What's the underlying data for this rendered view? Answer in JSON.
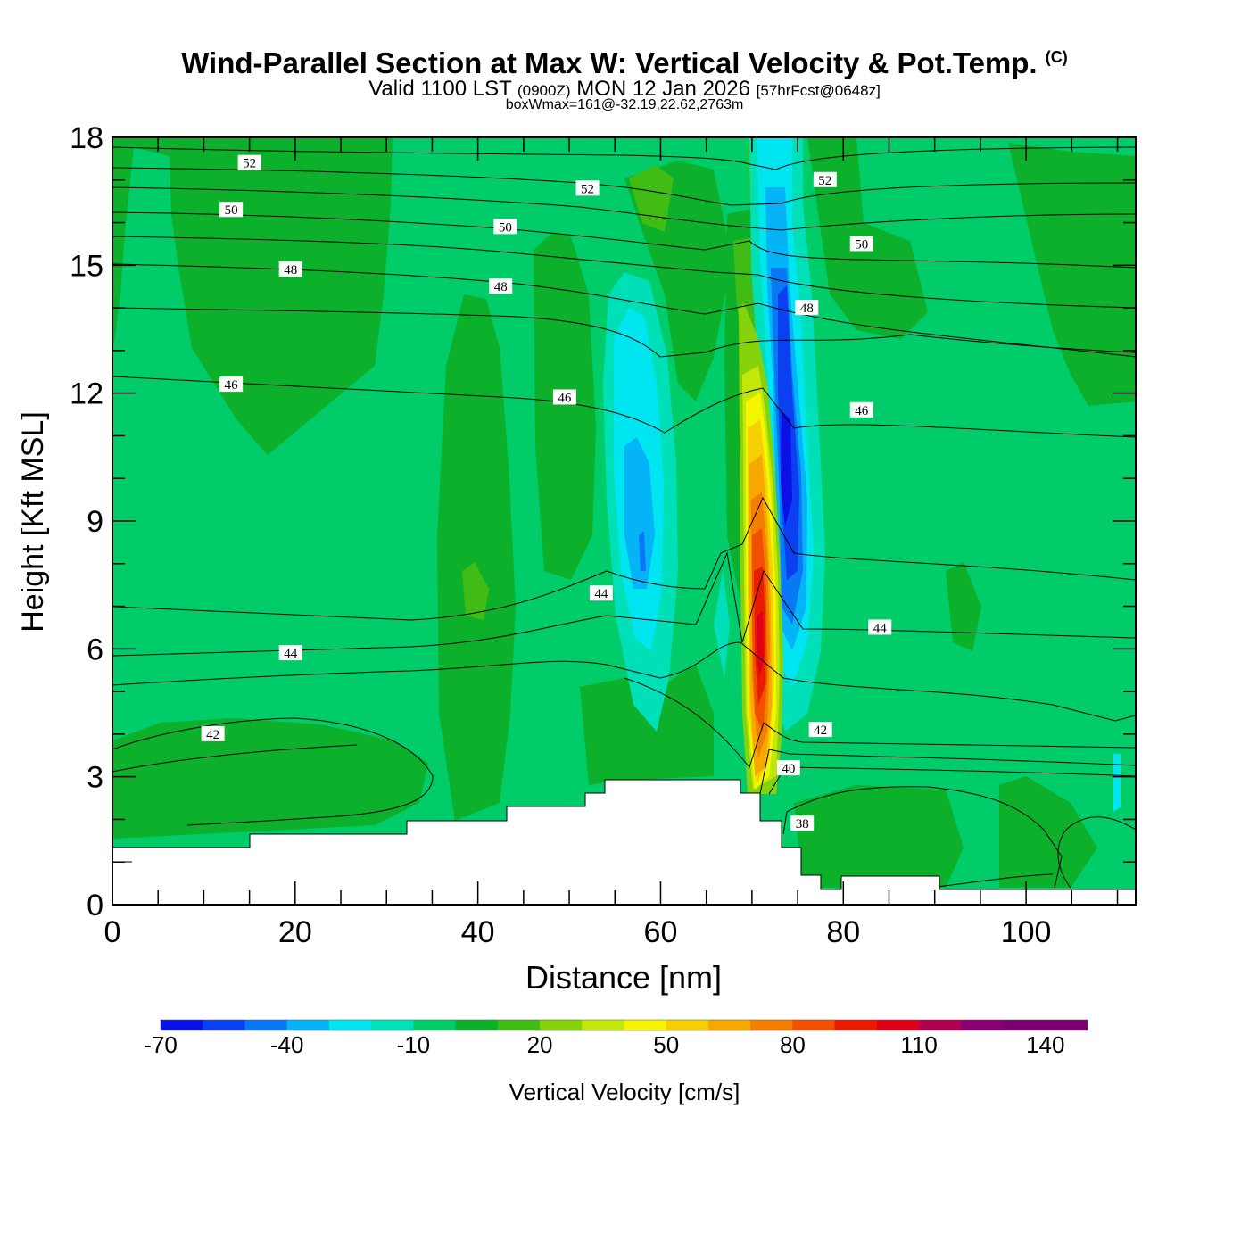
{
  "header": {
    "title_main": "Wind-Parallel Section at Max W: Vertical Velocity & Pot.Temp.",
    "title_copyright": "(C)",
    "valid_prefix": "Valid 1100 LST",
    "valid_utc": "(0900Z)",
    "valid_date": "MON 12 Jan 2026",
    "forecast_info": "[57hrFcst@0648z]",
    "box_info": "boxWmax=161@-32.19,22.62,2763m"
  },
  "chart_data": {
    "type": "heatmap",
    "title": "Wind-Parallel Section at Max W: Vertical Velocity & Pot.Temp.",
    "xlabel": "Distance [nm]",
    "ylabel": "Height [Kft MSL]",
    "xlim": [
      0,
      112
    ],
    "ylim": [
      0,
      18
    ],
    "x_ticks": [
      0,
      20,
      40,
      60,
      80,
      100
    ],
    "y_ticks": [
      0,
      3,
      6,
      9,
      12,
      15,
      18
    ],
    "colorbar": {
      "label": "Vertical Velocity [cm/s]",
      "tick_labels": [
        "-70",
        "-40",
        "-10",
        "20",
        "50",
        "80",
        "110",
        "140"
      ],
      "tick_values": [
        -70,
        -40,
        -10,
        20,
        50,
        80,
        110,
        140
      ],
      "min": -70,
      "max": 150,
      "step": 10,
      "colors": [
        "#0a10e6",
        "#0b40f0",
        "#0878f5",
        "#04b4f7",
        "#00e6f0",
        "#00e0b8",
        "#00cc6a",
        "#0cb02a",
        "#40bc14",
        "#86d20c",
        "#c2e80a",
        "#f5f500",
        "#f5d000",
        "#f4a800",
        "#f47e00",
        "#f05000",
        "#ea1c00",
        "#de0018",
        "#b20050",
        "#8a0070",
        "#7a0070",
        "#7a0070"
      ]
    },
    "contours": {
      "variable": "Potential temperature",
      "labels": [
        {
          "text": "52",
          "x": 15,
          "y": 17.4
        },
        {
          "text": "52",
          "x": 52,
          "y": 16.8
        },
        {
          "text": "52",
          "x": 78,
          "y": 17.0
        },
        {
          "text": "50",
          "x": 13,
          "y": 16.3
        },
        {
          "text": "50",
          "x": 43,
          "y": 15.9
        },
        {
          "text": "50",
          "x": 82,
          "y": 15.5
        },
        {
          "text": "48",
          "x": 19.5,
          "y": 14.9
        },
        {
          "text": "48",
          "x": 42.5,
          "y": 14.5
        },
        {
          "text": "48",
          "x": 76,
          "y": 14.0
        },
        {
          "text": "46",
          "x": 13,
          "y": 12.2
        },
        {
          "text": "46",
          "x": 49.5,
          "y": 11.9
        },
        {
          "text": "46",
          "x": 82,
          "y": 11.6
        },
        {
          "text": "44",
          "x": 53.5,
          "y": 7.3
        },
        {
          "text": "44",
          "x": 19.5,
          "y": 5.9
        },
        {
          "text": "44",
          "x": 84,
          "y": 6.5
        },
        {
          "text": "42",
          "x": 11,
          "y": 4.0
        },
        {
          "text": "42",
          "x": 77.5,
          "y": 4.1
        },
        {
          "text": "40",
          "x": 74,
          "y": 3.2
        },
        {
          "text": "38",
          "x": 75.5,
          "y": 1.9
        }
      ]
    }
  }
}
